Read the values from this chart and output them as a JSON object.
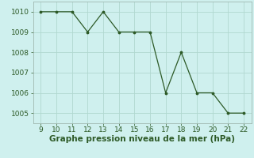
{
  "x": [
    9,
    10,
    11,
    12,
    13,
    14,
    15,
    16,
    17,
    18,
    19,
    20,
    21,
    22
  ],
  "y": [
    1010,
    1010,
    1010,
    1009,
    1010,
    1009,
    1009,
    1009,
    1006,
    1008,
    1006,
    1006,
    1005,
    1005
  ],
  "xlim": [
    8.5,
    22.5
  ],
  "ylim": [
    1004.5,
    1010.5
  ],
  "xticks": [
    9,
    10,
    11,
    12,
    13,
    14,
    15,
    16,
    17,
    18,
    19,
    20,
    21,
    22
  ],
  "yticks": [
    1005,
    1006,
    1007,
    1008,
    1009,
    1010
  ],
  "xlabel": "Graphe pression niveau de la mer (hPa)",
  "line_color": "#2d5a27",
  "marker_color": "#2d5a27",
  "bg_color": "#cff0ee",
  "grid_color": "#b0d8d0",
  "spine_color": "#a0b8b0",
  "tick_label_color": "#2d5a27",
  "xlabel_color": "#2d5a27",
  "xlabel_fontsize": 7.5,
  "tick_fontsize": 6.5
}
